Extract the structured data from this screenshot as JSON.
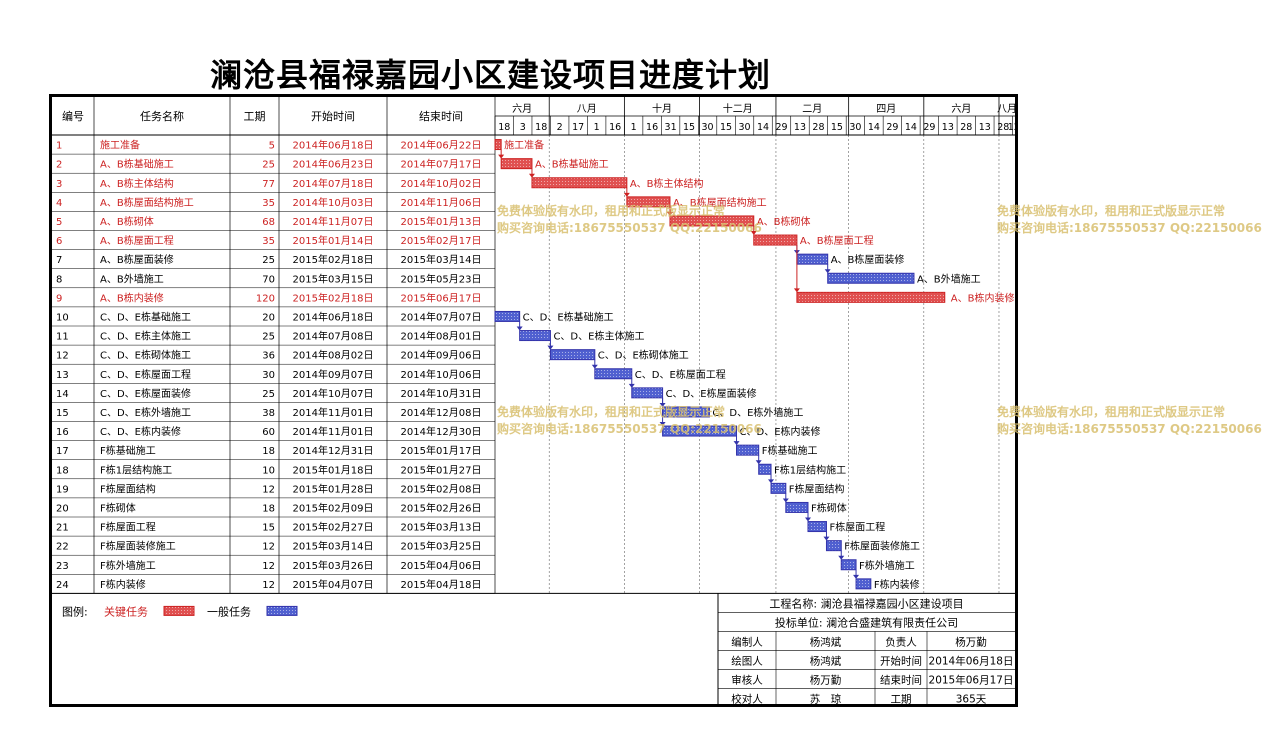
{
  "title": "澜沧县福禄嘉园小区建设项目进度计划",
  "table_headers": [
    "编号",
    "任务名称",
    "工期",
    "开始时间",
    "结束时间"
  ],
  "month_labels": [
    "六月",
    "八月",
    "十月",
    "十二月",
    "二月",
    "四月",
    "六月",
    "八月"
  ],
  "day_labels": [
    "18",
    "3",
    "18",
    "2",
    "17",
    "1",
    "16",
    "1",
    "16",
    "31",
    "15",
    "30",
    "15",
    "30",
    "14",
    "29",
    "13",
    "28",
    "15",
    "30",
    "14",
    "29",
    "14",
    "29",
    "13",
    "28",
    "13",
    "28",
    "12"
  ],
  "legend": {
    "label": "图例:",
    "critical": "关键任务",
    "normal": "一般任务"
  },
  "colors": {
    "critical": "#cc2222",
    "normal": "#3333aa",
    "critical_fill": "#e05050",
    "normal_fill": "#5060d0"
  },
  "info_block": {
    "project_name": "工程名称: 澜沧县福禄嘉园小区建设项目",
    "bid_unit": "投标单位: 澜沧合盛建筑有限责任公司",
    "rows": [
      [
        "编制人",
        "杨鸿斌",
        "负责人",
        "杨万勤"
      ],
      [
        "绘图人",
        "杨鸿斌",
        "开始时间",
        "2014年06月18日"
      ],
      [
        "审核人",
        "杨万勤",
        "结束时间",
        "2015年06月17日"
      ],
      [
        "校对人",
        "苏　琼",
        "工期",
        "365天"
      ]
    ]
  },
  "watermark": {
    "line1": "免费体验版有水印，租用和正式版显示正常",
    "line2": "购买咨询电话:18675550537 QQ:22150066"
  },
  "chart_data": {
    "type": "gantt",
    "title": "澜沧县福禄嘉园小区建设项目进度计划",
    "x_range": [
      "2014-06-18",
      "2015-08-14"
    ],
    "tasks": [
      {
        "id": "1",
        "name": "施工准备",
        "duration": "5",
        "start": "2014年06月18日",
        "end": "2014年06月22日",
        "critical": true
      },
      {
        "id": "2",
        "name": "A、B栋基础施工",
        "duration": "25",
        "start": "2014年06月23日",
        "end": "2014年07月17日",
        "critical": true
      },
      {
        "id": "3",
        "name": "A、B栋主体结构",
        "duration": "77",
        "start": "2014年07月18日",
        "end": "2014年10月02日",
        "critical": true
      },
      {
        "id": "4",
        "name": "A、B栋屋面结构施工",
        "duration": "35",
        "start": "2014年10月03日",
        "end": "2014年11月06日",
        "critical": true
      },
      {
        "id": "5",
        "name": "A、B栋砌体",
        "duration": "68",
        "start": "2014年11月07日",
        "end": "2015年01月13日",
        "critical": true
      },
      {
        "id": "6",
        "name": "A、B栋屋面工程",
        "duration": "35",
        "start": "2015年01月14日",
        "end": "2015年02月17日",
        "critical": true
      },
      {
        "id": "7",
        "name": "A、B栋屋面装修",
        "duration": "25",
        "start": "2015年02月18日",
        "end": "2015年03月14日",
        "critical": false
      },
      {
        "id": "8",
        "name": "A、B外墙施工",
        "duration": "70",
        "start": "2015年03月15日",
        "end": "2015年05月23日",
        "critical": false
      },
      {
        "id": "9",
        "name": "A、B栋内装修",
        "duration": "120",
        "start": "2015年02月18日",
        "end": "2015年06月17日",
        "critical": true
      },
      {
        "id": "10",
        "name": "C、D、E栋基础施工",
        "duration": "20",
        "start": "2014年06月18日",
        "end": "2014年07月07日",
        "critical": false
      },
      {
        "id": "11",
        "name": "C、D、E栋主体施工",
        "duration": "25",
        "start": "2014年07月08日",
        "end": "2014年08月01日",
        "critical": false
      },
      {
        "id": "12",
        "name": "C、D、E栋砌体施工",
        "duration": "36",
        "start": "2014年08月02日",
        "end": "2014年09月06日",
        "critical": false
      },
      {
        "id": "13",
        "name": "C、D、E栋屋面工程",
        "duration": "30",
        "start": "2014年09月07日",
        "end": "2014年10月06日",
        "critical": false
      },
      {
        "id": "14",
        "name": "C、D、E栋屋面装修",
        "duration": "25",
        "start": "2014年10月07日",
        "end": "2014年10月31日",
        "critical": false
      },
      {
        "id": "15",
        "name": "C、D、E栋外墙施工",
        "duration": "38",
        "start": "2014年11月01日",
        "end": "2014年12月08日",
        "critical": false
      },
      {
        "id": "16",
        "name": "C、D、E栋内装修",
        "duration": "60",
        "start": "2014年11月01日",
        "end": "2014年12月30日",
        "critical": false
      },
      {
        "id": "17",
        "name": "F栋基础施工",
        "duration": "18",
        "start": "2014年12月31日",
        "end": "2015年01月17日",
        "critical": false
      },
      {
        "id": "18",
        "name": "F栋1层结构施工",
        "duration": "10",
        "start": "2015年01月18日",
        "end": "2015年01月27日",
        "critical": false
      },
      {
        "id": "19",
        "name": "F栋屋面结构",
        "duration": "12",
        "start": "2015年01月28日",
        "end": "2015年02月08日",
        "critical": false
      },
      {
        "id": "20",
        "name": "F栋砌体",
        "duration": "18",
        "start": "2015年02月09日",
        "end": "2015年02月26日",
        "critical": false
      },
      {
        "id": "21",
        "name": "F栋屋面工程",
        "duration": "15",
        "start": "2015年02月27日",
        "end": "2015年03月13日",
        "critical": false
      },
      {
        "id": "22",
        "name": "F栋屋面装修施工",
        "duration": "12",
        "start": "2015年03月14日",
        "end": "2015年03月25日",
        "critical": false
      },
      {
        "id": "23",
        "name": "F栋外墙施工",
        "duration": "12",
        "start": "2015年03月26日",
        "end": "2015年04月06日",
        "critical": false
      },
      {
        "id": "24",
        "name": "F栋内装修",
        "duration": "12",
        "start": "2015年04月07日",
        "end": "2015年04月18日",
        "critical": false
      }
    ]
  }
}
